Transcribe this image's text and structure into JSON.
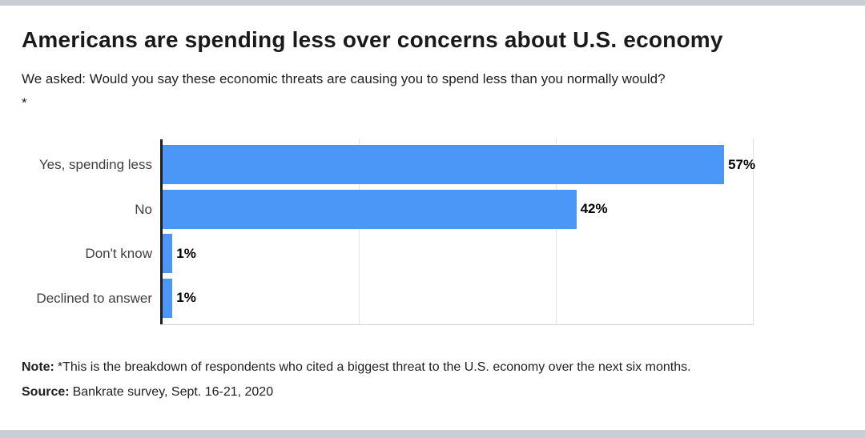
{
  "header": {
    "title": "Americans are spending less over concerns about U.S. economy",
    "subtitle": "We asked: Would you say these economic threats are causing you to spend less than you normally would?*"
  },
  "chart_data": {
    "type": "bar",
    "orientation": "horizontal",
    "title": "Americans are spending less over concerns about U.S. economy",
    "categories": [
      "Yes, spending less",
      "No",
      "Don't know",
      "Declined to answer"
    ],
    "values": [
      57,
      42,
      1,
      1
    ],
    "value_labels": [
      "57%",
      "42%",
      "1%",
      "1%"
    ],
    "xlabel": "",
    "ylabel": "",
    "xlim": [
      0,
      60
    ],
    "gridlines": [
      20,
      40,
      60
    ],
    "grid": "vertical gridlines, no tick labels",
    "legend": "none",
    "bar_color": "#4b97f8"
  },
  "footer": {
    "note_label": "Note:",
    "note_text": "*This is the breakdown of respondents who cited a biggest threat to the U.S. economy over the next six months.",
    "source_label": "Source:",
    "source_text": "Bankrate survey, Sept. 16-21, 2020"
  },
  "colors": {
    "bar": "#4b97f8",
    "axis_line": "#1f1f1f",
    "gridline": "#e2e4e7",
    "baseline": "#d6d9dc",
    "frame_strip": "#c9cdd4",
    "title_text": "#1a1a1a",
    "body_text": "#1f1f1f",
    "category_label_text": "#3f3f3f",
    "value_label_text": "#000000"
  }
}
